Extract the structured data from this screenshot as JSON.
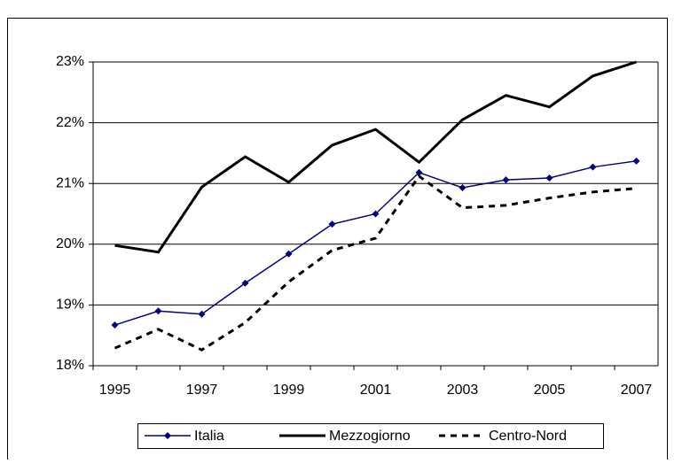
{
  "chart_data": {
    "type": "line",
    "categories": [
      "1995",
      null,
      "1997",
      null,
      "1999",
      null,
      "2001",
      null,
      "2003",
      null,
      "2005",
      null,
      "2007"
    ],
    "series": [
      {
        "name": "Italia",
        "color": "#000080",
        "line_style": "solid",
        "marker": "diamond",
        "values": [
          18.67,
          18.9,
          18.85,
          19.36,
          19.84,
          20.33,
          20.5,
          21.18,
          20.93,
          21.06,
          21.09,
          21.27,
          21.37
        ]
      },
      {
        "name": "Mezzogiorno",
        "color": "#000000",
        "line_style": "solid",
        "values": [
          19.98,
          19.87,
          20.94,
          21.44,
          21.02,
          21.63,
          21.89,
          21.35,
          22.05,
          22.45,
          22.26,
          22.77,
          23.0
        ]
      },
      {
        "name": "Centro-Nord",
        "color": "#000000",
        "line_style": "dashed",
        "values": [
          18.29,
          18.6,
          18.26,
          18.71,
          19.38,
          19.9,
          20.1,
          21.12,
          20.6,
          20.64,
          20.76,
          20.86,
          20.92
        ]
      }
    ],
    "ylim": [
      18,
      23
    ],
    "yticks": [
      {
        "value": 18,
        "label": "18%"
      },
      {
        "value": 19,
        "label": "19%"
      },
      {
        "value": 20,
        "label": "20%"
      },
      {
        "value": 21,
        "label": "21%"
      },
      {
        "value": 22,
        "label": "22%"
      },
      {
        "value": 23,
        "label": "23%"
      }
    ],
    "grid": true,
    "legend": "bottom"
  }
}
